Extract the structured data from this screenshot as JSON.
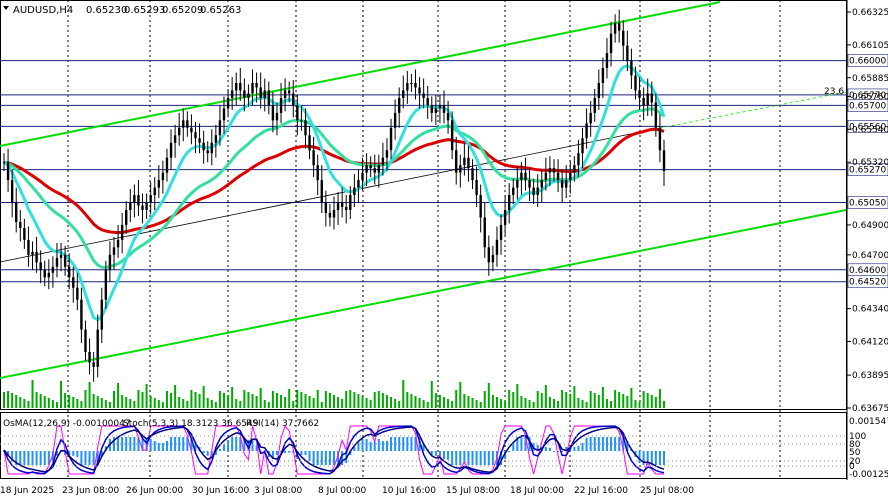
{
  "header": {
    "symbol": "AUDUSD,H4",
    "open": "0.65230",
    "high": "0.65293",
    "low": "0.65209",
    "close": "0.65263"
  },
  "indicator_header": {
    "osma": "OsMA(12,26,9) -0.00100047",
    "stoch": "Stoch(5,3,3) 18.3123 36.6549",
    "rsi": "RSI(14) 37.7662"
  },
  "fib_label": "23.6",
  "colors": {
    "background": "#ffffff",
    "candle": "#000000",
    "channel": "#00dd00",
    "ema_fast": "#33e0e0",
    "ema_mid": "#33e0a0",
    "ema_slow": "#dd0000",
    "hline": "#1a237e",
    "vline": "#000000",
    "osma": "#1e90ff",
    "stoch_main": "#000080",
    "stoch_signal": "#ff00ff",
    "rsi": "#0000cd",
    "volume": "#00aa00"
  },
  "chart_data": {
    "type": "candlestick",
    "symbol": "AUDUSD",
    "timeframe": "H4",
    "price_range": [
      0.6364,
      0.6534
    ],
    "price_ticks": [
      "0.66325",
      "0.66105",
      "0.65885",
      "0.65760",
      "0.65540",
      "0.65320",
      "0.64900",
      "0.64700",
      "0.64340",
      "0.64120",
      "0.63895",
      "0.63675"
    ],
    "level_labels": [
      "0.66000",
      "0.65770",
      "0.65700",
      "0.65560",
      "0.65270",
      "0.65050",
      "0.64600",
      "0.64520"
    ],
    "levels": [
      0.66,
      0.6577,
      0.657,
      0.6556,
      0.6527,
      0.6505,
      0.646,
      0.6452
    ],
    "date_ticks": [
      "18 Jun 2025",
      "23 Jun 08:00",
      "26 Jun 00:00",
      "30 Jun 16:00",
      "3 Jul 08:00",
      "8 Jul 00:00",
      "10 Jul 16:00",
      "15 Jul 08:00",
      "18 Jul 00:00",
      "22 Jul 16:00",
      "25 Jul 08:00"
    ],
    "indicator_ticks": [
      "0.001547",
      "100",
      "80",
      "50",
      "20",
      "0",
      "-0.001256"
    ],
    "closes": [
      0.6532,
      0.652,
      0.6505,
      0.6492,
      0.6488,
      0.648,
      0.647,
      0.6472,
      0.6465,
      0.646,
      0.6455,
      0.6458,
      0.6462,
      0.6468,
      0.647,
      0.6462,
      0.6455,
      0.6448,
      0.644,
      0.642,
      0.6405,
      0.6398,
      0.6395,
      0.642,
      0.644,
      0.646,
      0.647,
      0.6475,
      0.648,
      0.649,
      0.65,
      0.6505,
      0.651,
      0.6503,
      0.65,
      0.6505,
      0.651,
      0.6515,
      0.652,
      0.6525,
      0.6535,
      0.6545,
      0.655,
      0.6555,
      0.656,
      0.6555,
      0.6552,
      0.6548,
      0.6545,
      0.654,
      0.6538,
      0.6545,
      0.655,
      0.656,
      0.6568,
      0.6575,
      0.658,
      0.6585,
      0.658,
      0.6575,
      0.6578,
      0.6585,
      0.6582,
      0.6575,
      0.658,
      0.657,
      0.656,
      0.6565,
      0.6575,
      0.658,
      0.6578,
      0.657,
      0.656,
      0.656,
      0.655,
      0.654,
      0.653,
      0.652,
      0.6505,
      0.6498,
      0.6495,
      0.65,
      0.6505,
      0.6502,
      0.65,
      0.651,
      0.6515,
      0.652,
      0.6525,
      0.653,
      0.6528,
      0.6525,
      0.653,
      0.6535,
      0.654,
      0.6555,
      0.6565,
      0.6575,
      0.658,
      0.6585,
      0.6585,
      0.6582,
      0.6578,
      0.6575,
      0.657,
      0.6565,
      0.6568,
      0.657,
      0.6565,
      0.656,
      0.654,
      0.6525,
      0.653,
      0.6535,
      0.6528,
      0.652,
      0.651,
      0.6495,
      0.6475,
      0.6465,
      0.647,
      0.648,
      0.649,
      0.65,
      0.651,
      0.6515,
      0.652,
      0.6525,
      0.652,
      0.6515,
      0.651,
      0.6515,
      0.652,
      0.6525,
      0.6528,
      0.6525,
      0.652,
      0.6515,
      0.652,
      0.6525,
      0.653,
      0.6538,
      0.6548,
      0.6558,
      0.6565,
      0.6575,
      0.6585,
      0.6595,
      0.6605,
      0.6618,
      0.6625,
      0.662,
      0.661,
      0.66,
      0.659,
      0.658,
      0.6575,
      0.657,
      0.6578,
      0.6572,
      0.6555,
      0.654,
      0.6526
    ]
  }
}
